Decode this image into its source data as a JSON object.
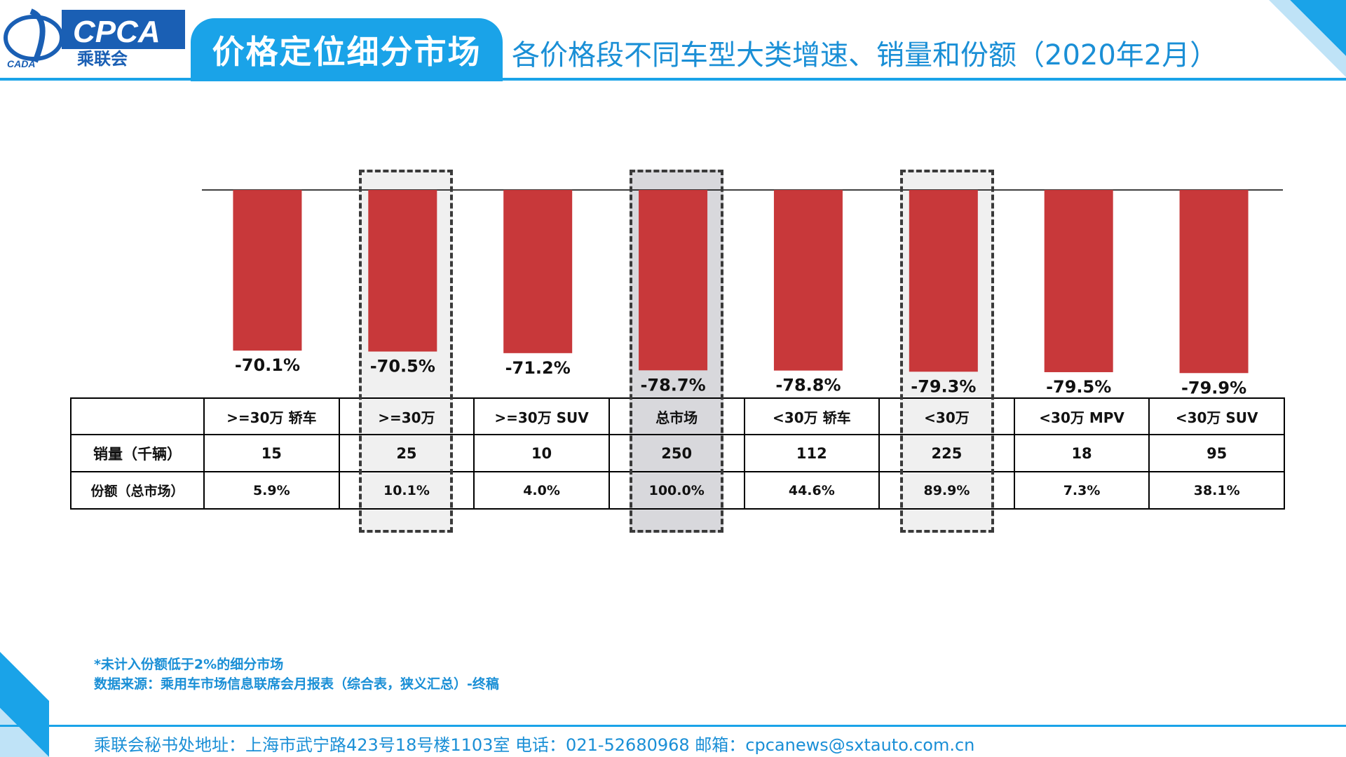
{
  "header": {
    "logo_text": "CPCA",
    "logo_subtext": "乘联会",
    "logo_tag": "CADA",
    "title": "价格定位细分市场",
    "subtitle": "各价格段不同车型大类增速、销量和份额（2020年2月）"
  },
  "colors": {
    "accent": "#1aa3e8",
    "bar": "#c8383a",
    "highlight_light": "#f0f0f0",
    "highlight_dark": "#d8d8dc"
  },
  "chart_data": {
    "type": "bar",
    "categories": [
      ">=30万 轿车",
      ">=30万",
      ">=30万 SUV",
      "总市场",
      "<30万 轿车",
      "<30万",
      "<30万 MPV",
      "<30万 SUV"
    ],
    "values": [
      -70.1,
      -70.5,
      -71.2,
      -78.7,
      -78.8,
      -79.3,
      -79.5,
      -79.9
    ],
    "value_labels": [
      "-70.1%",
      "-70.5%",
      "-71.2%",
      "-78.7%",
      "-78.8%",
      "-79.3%",
      "-79.5%",
      "-79.9%"
    ],
    "ylim": [
      -100,
      0
    ],
    "highlighted": [
      ">=30万",
      "总市场",
      "<30万"
    ]
  },
  "table": {
    "headers": [
      "",
      ">=30万 轿车",
      ">=30万",
      ">=30万 SUV",
      "总市场",
      "<30万 轿车",
      "<30万",
      "<30万 MPV",
      "<30万 SUV"
    ],
    "rows": [
      {
        "label": "销量（千辆）",
        "cells": [
          "15",
          "25",
          "10",
          "250",
          "112",
          "225",
          "18",
          "95"
        ]
      },
      {
        "label": "份额（总市场）",
        "cells": [
          "5.9%",
          "10.1%",
          "4.0%",
          "100.0%",
          "44.6%",
          "89.9%",
          "7.3%",
          "38.1%"
        ]
      }
    ]
  },
  "notes": {
    "line1": "*未计入份额低于2%的细分市场",
    "line2": "数据来源：乘用车市场信息联席会月报表（综合表，狭义汇总）-终稿"
  },
  "footer": {
    "text": "乘联会秘书处地址：上海市武宁路423号18号楼1103室  电话：021-52680968   邮箱：cpcanews@sxtauto.com.cn"
  }
}
